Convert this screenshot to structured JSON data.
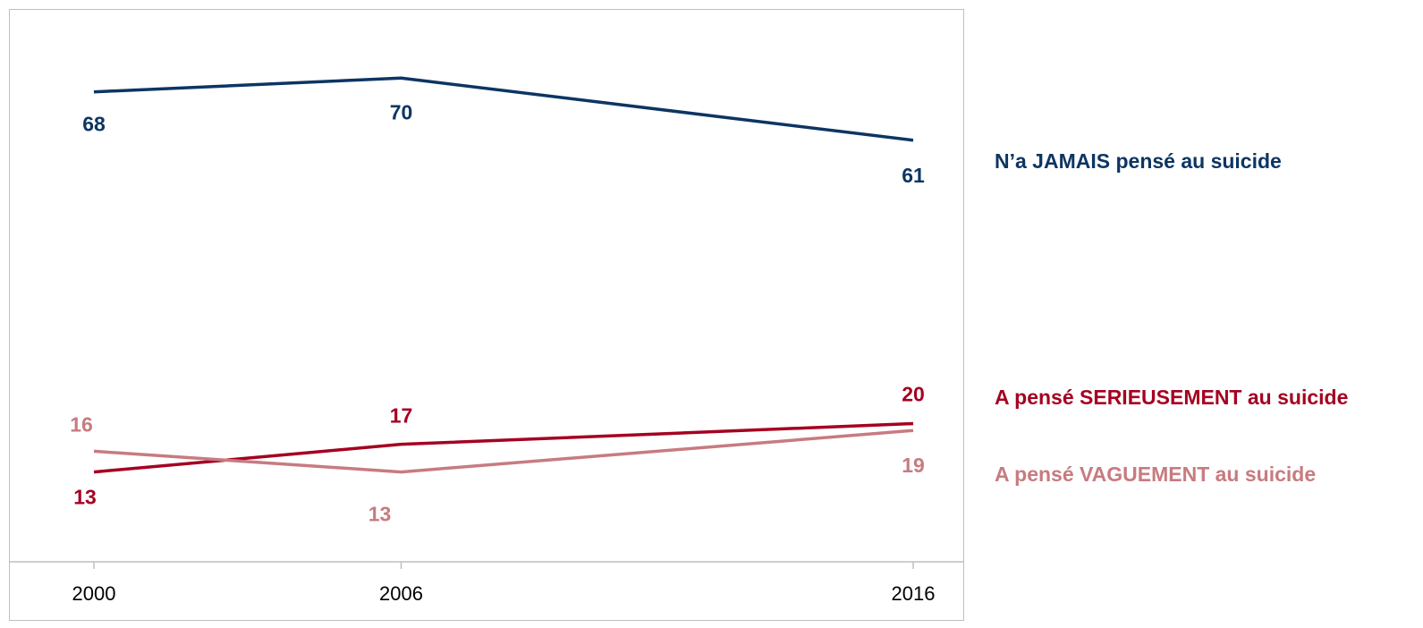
{
  "chart_data": {
    "type": "line",
    "x": [
      "2000",
      "2006",
      "2016"
    ],
    "ylim": [
      0,
      80
    ],
    "grid": false,
    "legend_position": "right",
    "series": [
      {
        "name": "N’a JAMAIS pensé au suicide",
        "values": [
          68,
          70,
          61
        ],
        "color": "#0d3563"
      },
      {
        "name": "A pensé SERIEUSEMENT au suicide",
        "values": [
          13,
          17,
          20
        ],
        "color": "#a50021"
      },
      {
        "name": "A pensé VAGUEMENT au suicide",
        "values": [
          16,
          13,
          19
        ],
        "color": "#c77b80"
      }
    ]
  }
}
